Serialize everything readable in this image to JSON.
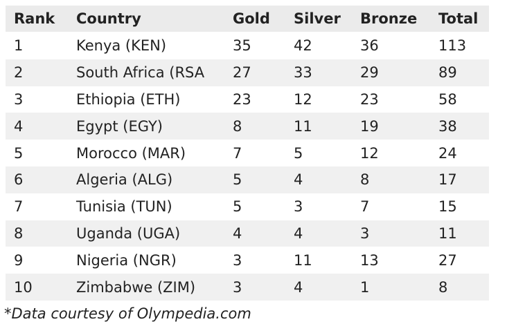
{
  "table": {
    "columns": [
      "Rank",
      "Country",
      "Gold",
      "Silver",
      "Bronze",
      "Total"
    ],
    "rows": [
      [
        1,
        "Kenya (KEN)",
        35,
        42,
        36,
        113
      ],
      [
        2,
        "South Africa (RSA",
        27,
        33,
        29,
        89
      ],
      [
        3,
        "Ethiopia (ETH)",
        23,
        12,
        23,
        58
      ],
      [
        4,
        "Egypt (EGY)",
        8,
        11,
        19,
        38
      ],
      [
        5,
        "Morocco (MAR)",
        7,
        5,
        12,
        24
      ],
      [
        6,
        "Algeria (ALG)",
        5,
        4,
        8,
        17
      ],
      [
        7,
        "Tunisia (TUN)",
        5,
        3,
        7,
        15
      ],
      [
        8,
        "Uganda (UGA)",
        4,
        4,
        3,
        11
      ],
      [
        9,
        "Nigeria (NGR)",
        3,
        11,
        13,
        27
      ],
      [
        10,
        "Zimbabwe (ZIM)",
        3,
        4,
        1,
        8
      ]
    ]
  },
  "footnote": "*Data courtesy of Olympedia.com"
}
